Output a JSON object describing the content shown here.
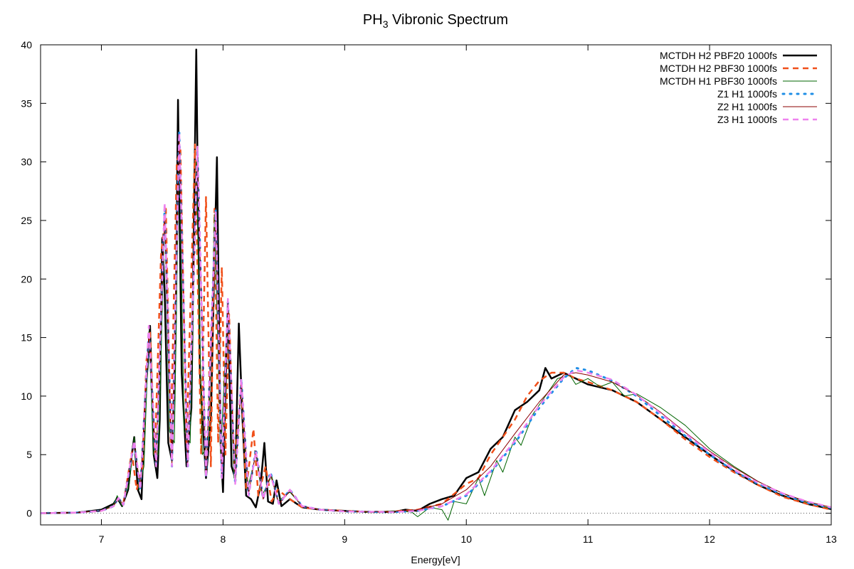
{
  "chart_data": {
    "type": "line",
    "title": [
      "PH",
      "3",
      " Vibronic Spectrum"
    ],
    "x_label": "Energy[eV]",
    "xlim": [
      6.5,
      13
    ],
    "ylim": [
      -1,
      40
    ],
    "xticks": [
      7,
      8,
      9,
      10,
      11,
      12,
      13
    ],
    "yticks": [
      0,
      5,
      10,
      15,
      20,
      25,
      30,
      35,
      40
    ],
    "zeroaxis": true,
    "legend": "top-right",
    "series": [
      {
        "name": "MCTDH H2 PBF20 1000fs",
        "color": "#000000",
        "style": "solid",
        "width": 2.5,
        "x": [
          6.5,
          6.8,
          7.0,
          7.1,
          7.13,
          7.17,
          7.22,
          7.25,
          7.27,
          7.3,
          7.33,
          7.36,
          7.38,
          7.4,
          7.43,
          7.46,
          7.48,
          7.5,
          7.52,
          7.55,
          7.58,
          7.61,
          7.63,
          7.66,
          7.7,
          7.74,
          7.78,
          7.81,
          7.86,
          7.9,
          7.93,
          7.95,
          7.98,
          8.0,
          8.02,
          8.04,
          8.07,
          8.1,
          8.13,
          8.16,
          8.19,
          8.23,
          8.27,
          8.31,
          8.34,
          8.37,
          8.41,
          8.44,
          8.48,
          8.55,
          8.65,
          8.8,
          9.0,
          9.2,
          9.4,
          9.5,
          9.6,
          9.7,
          9.8,
          9.9,
          10.0,
          10.1,
          10.2,
          10.3,
          10.4,
          10.5,
          10.6,
          10.65,
          10.7,
          10.8,
          10.9,
          11.0,
          11.2,
          11.4,
          11.6,
          11.8,
          12.0,
          12.2,
          12.4,
          12.6,
          12.8,
          13.0
        ],
        "values": [
          0,
          0.05,
          0.3,
          0.8,
          1.3,
          0.6,
          2,
          5,
          6.5,
          2,
          1.2,
          10,
          12.5,
          16,
          5,
          3,
          8,
          23.5,
          19,
          6,
          4.5,
          15,
          35.3,
          12,
          4,
          9,
          39.6,
          12,
          3,
          8,
          22,
          30.4,
          6,
          1.8,
          10,
          18,
          4,
          3,
          16.2,
          8,
          1.5,
          1.2,
          0.5,
          2.5,
          6,
          1,
          0.8,
          2.8,
          0.6,
          1.2,
          0.5,
          0.3,
          0.2,
          0.1,
          0.1,
          0.3,
          0.2,
          0.8,
          1.2,
          1.5,
          3,
          3.5,
          5.5,
          6.5,
          8.8,
          9.5,
          10.5,
          12.4,
          11.5,
          12,
          11.5,
          11,
          10.5,
          9.5,
          8,
          6.5,
          5,
          3.6,
          2.4,
          1.5,
          0.8,
          0.35
        ]
      },
      {
        "name": "MCTDH H2 PBF30 1000fs",
        "color": "#f0501a",
        "style": "dashed",
        "width": 2.5,
        "x": [
          6.5,
          6.8,
          7.0,
          7.1,
          7.14,
          7.18,
          7.25,
          7.29,
          7.34,
          7.37,
          7.4,
          7.44,
          7.49,
          7.53,
          7.57,
          7.62,
          7.65,
          7.7,
          7.77,
          7.82,
          7.86,
          7.9,
          7.93,
          7.96,
          7.99,
          8.02,
          8.05,
          8.09,
          8.15,
          8.19,
          8.25,
          8.29,
          8.35,
          8.4,
          8.45,
          8.55,
          8.65,
          8.8,
          9.0,
          9.2,
          9.4,
          9.6,
          9.8,
          10.0,
          10.1,
          10.2,
          10.3,
          10.4,
          10.5,
          10.6,
          10.7,
          10.8,
          10.9,
          11.0,
          11.2,
          11.4,
          11.6,
          11.8,
          12.0,
          12.2,
          12.4,
          12.6,
          12.8,
          13.0
        ],
        "values": [
          0,
          0.05,
          0.2,
          0.6,
          1.2,
          0.8,
          5.2,
          2,
          4,
          13,
          15.5,
          5,
          22,
          26,
          6,
          30,
          31,
          6,
          31.5,
          5,
          27,
          4,
          26,
          6,
          21,
          5,
          17,
          4,
          11,
          2,
          7.2,
          1.5,
          4,
          1,
          2,
          1.2,
          0.5,
          0.3,
          0.2,
          0.1,
          0.15,
          0.3,
          0.8,
          2.5,
          3,
          5,
          6.5,
          8,
          10,
          11.3,
          12,
          12,
          11.5,
          11.2,
          10.5,
          9.5,
          8,
          6.3,
          4.8,
          3.5,
          2.4,
          1.4,
          0.8,
          0.3
        ]
      },
      {
        "name": "MCTDH H1 PBF30 1000fs",
        "color": "#006400",
        "style": "solid",
        "width": 1,
        "x": [
          6.5,
          6.8,
          7.0,
          7.1,
          7.13,
          7.17,
          7.23,
          7.27,
          7.31,
          7.35,
          7.39,
          7.43,
          7.47,
          7.52,
          7.56,
          7.6,
          7.64,
          7.68,
          7.73,
          7.78,
          7.83,
          7.88,
          7.93,
          7.98,
          8.04,
          8.09,
          8.15,
          8.2,
          8.27,
          8.32,
          8.4,
          8.45,
          8.55,
          8.65,
          8.8,
          9.0,
          9.2,
          9.4,
          9.55,
          9.6,
          9.7,
          9.8,
          9.85,
          9.9,
          10.0,
          10.1,
          10.15,
          10.25,
          10.3,
          10.4,
          10.45,
          10.55,
          10.65,
          10.75,
          10.85,
          10.9,
          11.0,
          11.1,
          11.2,
          11.3,
          11.4,
          11.6,
          11.8,
          12.0,
          12.2,
          12.4,
          12.6,
          12.8,
          13.0
        ],
        "values": [
          0,
          0.05,
          0.2,
          0.7,
          1.5,
          0.6,
          2.5,
          6.5,
          2,
          4,
          15.5,
          5,
          5,
          25.5,
          7,
          6,
          32,
          7,
          6,
          30,
          5,
          6,
          25.5,
          5,
          18,
          3,
          11,
          2,
          5,
          1.5,
          3.2,
          1,
          1.8,
          0.6,
          0.3,
          0.15,
          0.1,
          0.2,
          0.1,
          -0.3,
          0.5,
          0.3,
          -0.6,
          1,
          0.8,
          3,
          1.5,
          4.5,
          3.5,
          6.5,
          5.8,
          8.5,
          10,
          11.5,
          11.8,
          11,
          11.5,
          10.8,
          11.2,
          10,
          10.2,
          9,
          7.5,
          5.5,
          4,
          2.7,
          1.7,
          0.9,
          0.4
        ]
      },
      {
        "name": "Z1 H1 1000fs",
        "color": "#1e8ee6",
        "style": "dotted",
        "width": 3,
        "x": [
          6.5,
          6.8,
          7.0,
          7.1,
          7.14,
          7.18,
          7.27,
          7.32,
          7.39,
          7.45,
          7.52,
          7.58,
          7.64,
          7.71,
          7.79,
          7.86,
          7.94,
          7.99,
          8.04,
          8.1,
          8.15,
          8.21,
          8.27,
          8.33,
          8.39,
          8.46,
          8.55,
          8.65,
          8.8,
          9.0,
          9.4,
          9.6,
          9.8,
          10.0,
          10.2,
          10.4,
          10.6,
          10.8,
          10.9,
          11.0,
          11.2,
          11.4,
          11.6,
          11.8,
          12.0,
          12.2,
          12.4,
          12.6,
          12.8,
          13.0
        ],
        "values": [
          0,
          0.05,
          0.2,
          0.6,
          1.3,
          0.7,
          6,
          2,
          15.5,
          4,
          26,
          4,
          32.5,
          4,
          31,
          3,
          26,
          3,
          18,
          2.5,
          11.5,
          1.5,
          5.5,
          1.2,
          3.5,
          0.8,
          2,
          0.6,
          0.3,
          0.15,
          0.1,
          0.2,
          0.6,
          1.5,
          3.5,
          6,
          9,
          11.5,
          12.4,
          12.2,
          11.3,
          10,
          8.3,
          6.6,
          5,
          3.6,
          2.5,
          1.6,
          0.9,
          0.45
        ]
      },
      {
        "name": "Z2 H1 1000fs",
        "color": "#8b0000",
        "style": "solid",
        "width": 1,
        "x": [
          6.5,
          6.8,
          7.0,
          7.1,
          7.14,
          7.18,
          7.27,
          7.32,
          7.39,
          7.45,
          7.52,
          7.58,
          7.64,
          7.71,
          7.79,
          7.86,
          7.94,
          7.99,
          8.04,
          8.1,
          8.15,
          8.21,
          8.27,
          8.33,
          8.39,
          8.46,
          8.55,
          8.65,
          8.8,
          9.0,
          9.4,
          9.6,
          9.8,
          10.0,
          10.2,
          10.4,
          10.6,
          10.8,
          10.9,
          11.0,
          11.2,
          11.4,
          11.6,
          11.8,
          12.0,
          12.2,
          12.4,
          12.6,
          12.8,
          13.0
        ],
        "values": [
          0,
          0.05,
          0.2,
          0.6,
          1.3,
          0.7,
          6,
          2.2,
          15.3,
          4.2,
          25.5,
          4.2,
          32,
          4.2,
          30.5,
          3.2,
          25.5,
          3.2,
          18,
          2.6,
          11.3,
          1.6,
          5.3,
          1.2,
          3.3,
          0.8,
          1.9,
          0.6,
          0.3,
          0.15,
          0.15,
          0.3,
          0.8,
          2,
          4,
          6.8,
          9.5,
          11.8,
          12,
          11.8,
          11.2,
          10.1,
          8.6,
          6.9,
          5.3,
          3.9,
          2.7,
          1.7,
          1,
          0.5
        ]
      },
      {
        "name": "Z3 H1 1000fs",
        "color": "#ee82ee",
        "style": "dashed",
        "width": 2.5,
        "x": [
          6.5,
          6.8,
          7.0,
          7.1,
          7.14,
          7.18,
          7.27,
          7.32,
          7.39,
          7.45,
          7.52,
          7.58,
          7.64,
          7.71,
          7.79,
          7.86,
          7.94,
          7.99,
          8.04,
          8.1,
          8.15,
          8.21,
          8.27,
          8.33,
          8.39,
          8.46,
          8.55,
          8.65,
          8.8,
          9.0,
          9.4,
          9.6,
          9.8,
          10.0,
          10.2,
          10.4,
          10.6,
          10.8,
          10.9,
          11.0,
          11.2,
          11.4,
          11.6,
          11.8,
          12.0,
          12.2,
          12.4,
          12.6,
          12.8,
          13.0
        ],
        "values": [
          0,
          0.05,
          0.2,
          0.6,
          1.3,
          0.7,
          6.2,
          2,
          16,
          4,
          26.5,
          4,
          32.5,
          4,
          31.3,
          3,
          25.8,
          3,
          18.3,
          2.5,
          11.5,
          1.5,
          5.3,
          1.2,
          3.3,
          0.8,
          2,
          0.6,
          0.3,
          0.15,
          0.1,
          0.2,
          0.6,
          1.6,
          3.6,
          6.2,
          9.2,
          11.6,
          12.2,
          12,
          11.4,
          10.1,
          8.5,
          6.8,
          5.2,
          3.7,
          2.6,
          1.7,
          1,
          0.5
        ]
      }
    ]
  }
}
